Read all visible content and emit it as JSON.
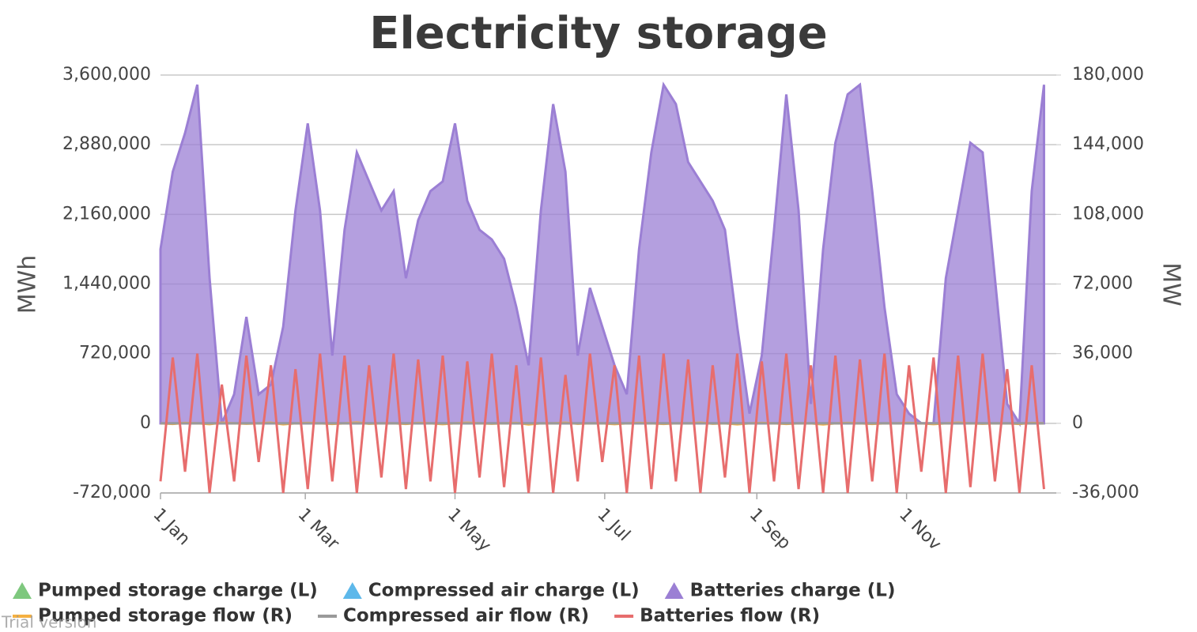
{
  "chart_data": {
    "type": "line",
    "title": "Electricity storage",
    "y_label": "MWh",
    "y2_label": "MW",
    "watermark": "Trial version",
    "xlim": [
      0,
      365
    ],
    "xticks": [
      {
        "value": 0,
        "label": "1 Jan"
      },
      {
        "value": 59,
        "label": "1 Mar"
      },
      {
        "value": 120,
        "label": "1 May"
      },
      {
        "value": 181,
        "label": "1 Jul"
      },
      {
        "value": 243,
        "label": "1 Sep"
      },
      {
        "value": 304,
        "label": "1 Nov"
      }
    ],
    "ylim": [
      -720000,
      3600000
    ],
    "yticks": [
      {
        "value": -720000,
        "label": "-720,000"
      },
      0,
      {
        "value": 720000,
        "label": "720,000"
      },
      {
        "value": 1440000,
        "label": "1,440,000"
      },
      {
        "value": 2160000,
        "label": "2,160,000"
      },
      {
        "value": 2880000,
        "label": "2,880,000"
      },
      {
        "value": 3600000,
        "label": "3,600,000"
      }
    ],
    "y2lim": [
      -36000,
      180000
    ],
    "y2ticks": [
      {
        "value": -36000,
        "label": "-36,000"
      },
      0,
      {
        "value": 36000,
        "label": "36,000"
      },
      {
        "value": 72000,
        "label": "72,000"
      },
      {
        "value": 108000,
        "label": "108,000"
      },
      {
        "value": 144000,
        "label": "144,000"
      },
      {
        "value": 180000,
        "label": "180,000"
      }
    ],
    "grid": true,
    "x": [
      0,
      5,
      10,
      15,
      20,
      25,
      30,
      35,
      40,
      45,
      50,
      55,
      60,
      65,
      70,
      75,
      80,
      85,
      90,
      95,
      100,
      105,
      110,
      115,
      120,
      125,
      130,
      135,
      140,
      145,
      150,
      155,
      160,
      165,
      170,
      175,
      180,
      185,
      190,
      195,
      200,
      205,
      210,
      215,
      220,
      225,
      230,
      235,
      240,
      245,
      250,
      255,
      260,
      265,
      270,
      275,
      280,
      285,
      290,
      295,
      300,
      305,
      310,
      315,
      320,
      325,
      330,
      335,
      340,
      345,
      350,
      355,
      360
    ],
    "series": [
      {
        "name": "Pumped storage charge (L)",
        "type": "area",
        "color": "#7ec87e",
        "values": [
          0,
          0,
          0,
          0,
          0,
          0,
          0,
          0,
          0,
          0,
          0,
          0,
          0,
          0,
          0,
          0,
          0,
          0,
          0,
          0,
          0,
          0,
          0,
          0,
          0,
          0,
          0,
          0,
          0,
          0,
          0,
          0,
          0,
          0,
          0,
          0,
          0,
          0,
          0,
          0,
          0,
          0,
          0,
          0,
          0,
          0,
          0,
          0,
          0,
          0,
          0,
          0,
          0,
          0,
          0,
          0,
          0,
          0,
          0,
          0,
          0,
          0,
          0,
          0,
          0,
          0,
          0,
          0,
          0,
          0,
          0,
          0,
          0
        ]
      },
      {
        "name": "Compressed air charge (L)",
        "type": "area",
        "color": "#5db8ea",
        "values": [
          0,
          0,
          0,
          0,
          0,
          0,
          0,
          0,
          0,
          0,
          0,
          0,
          0,
          0,
          0,
          0,
          0,
          0,
          0,
          0,
          0,
          0,
          0,
          0,
          0,
          0,
          0,
          0,
          0,
          0,
          0,
          0,
          0,
          0,
          0,
          0,
          0,
          0,
          0,
          0,
          0,
          0,
          0,
          0,
          0,
          0,
          0,
          0,
          0,
          0,
          0,
          0,
          0,
          0,
          0,
          0,
          0,
          0,
          0,
          0,
          0,
          0,
          0,
          0,
          0,
          0,
          0,
          0,
          0,
          0,
          0,
          0,
          0
        ]
      },
      {
        "name": "Batteries charge (L)",
        "type": "area",
        "color": "#9b7fd4",
        "values": [
          1800000,
          2600000,
          3000000,
          3500000,
          1500000,
          0,
          300000,
          1100000,
          300000,
          400000,
          1000000,
          2200000,
          3100000,
          2200000,
          700000,
          2000000,
          2800000,
          2500000,
          2200000,
          2400000,
          1500000,
          2100000,
          2400000,
          2500000,
          3100000,
          2300000,
          2000000,
          1900000,
          1700000,
          1200000,
          600000,
          2200000,
          3300000,
          2600000,
          700000,
          1400000,
          1000000,
          600000,
          300000,
          1800000,
          2800000,
          3500000,
          3300000,
          2700000,
          2500000,
          2300000,
          2000000,
          1000000,
          100000,
          700000,
          2000000,
          3400000,
          2200000,
          200000,
          1800000,
          2900000,
          3400000,
          3500000,
          2400000,
          1200000,
          300000,
          100000,
          0,
          0,
          1500000,
          2200000,
          2900000,
          2800000,
          1500000,
          200000,
          0,
          2400000,
          3500000
        ]
      },
      {
        "name": "Pumped storage flow (R)",
        "type": "line",
        "color": "#f5b041",
        "axis": "y2",
        "values": [
          0,
          -300,
          200,
          0,
          -400,
          300,
          0,
          -200,
          0,
          300,
          -500,
          0,
          200,
          0,
          -300,
          0,
          400,
          -200,
          0,
          0,
          -300,
          200,
          0,
          -400,
          0,
          300,
          0,
          -200,
          0,
          200,
          -600,
          0,
          0,
          300,
          -200,
          0,
          0,
          -400,
          0,
          200,
          0,
          -300,
          0,
          0,
          300,
          -200,
          0,
          -500,
          0,
          200,
          0,
          -300,
          0,
          0,
          -600,
          0,
          200,
          0,
          -300,
          0,
          0,
          200,
          0,
          -400,
          0,
          300,
          0,
          -200,
          0,
          0,
          -300,
          200,
          0
        ]
      },
      {
        "name": "Compressed air flow (R)",
        "type": "line",
        "color": "#9a9a9a",
        "axis": "y2",
        "values": [
          0,
          0,
          0,
          0,
          0,
          0,
          0,
          0,
          0,
          0,
          0,
          0,
          0,
          0,
          0,
          0,
          0,
          0,
          0,
          0,
          0,
          0,
          0,
          0,
          0,
          0,
          0,
          0,
          0,
          0,
          0,
          0,
          0,
          0,
          0,
          0,
          0,
          0,
          0,
          0,
          0,
          0,
          0,
          0,
          0,
          0,
          0,
          0,
          0,
          0,
          0,
          0,
          0,
          0,
          0,
          0,
          0,
          0,
          0,
          0,
          0,
          0,
          0,
          0,
          0,
          0,
          0,
          0,
          0,
          0,
          0,
          0,
          0
        ]
      },
      {
        "name": "Batteries flow (R)",
        "type": "line",
        "color": "#e76d6d",
        "axis": "y2",
        "values": [
          -30000,
          34000,
          -25000,
          36000,
          -36000,
          20000,
          -30000,
          35000,
          -20000,
          30000,
          -36000,
          28000,
          -34000,
          36000,
          -30000,
          35000,
          -36000,
          30000,
          -28000,
          36000,
          -34000,
          33000,
          -30000,
          35000,
          -36000,
          32000,
          -28000,
          36000,
          -33000,
          30000,
          -36000,
          34000,
          -36000,
          25000,
          -30000,
          36000,
          -20000,
          30000,
          -36000,
          35000,
          -34000,
          36000,
          -30000,
          33000,
          -36000,
          30000,
          -28000,
          36000,
          -36000,
          32000,
          -30000,
          36000,
          -34000,
          30000,
          -36000,
          35000,
          -36000,
          33000,
          -30000,
          36000,
          -36000,
          30000,
          -25000,
          34000,
          -36000,
          35000,
          -33000,
          36000,
          -30000,
          28000,
          -36000,
          30000,
          -34000
        ]
      }
    ]
  }
}
